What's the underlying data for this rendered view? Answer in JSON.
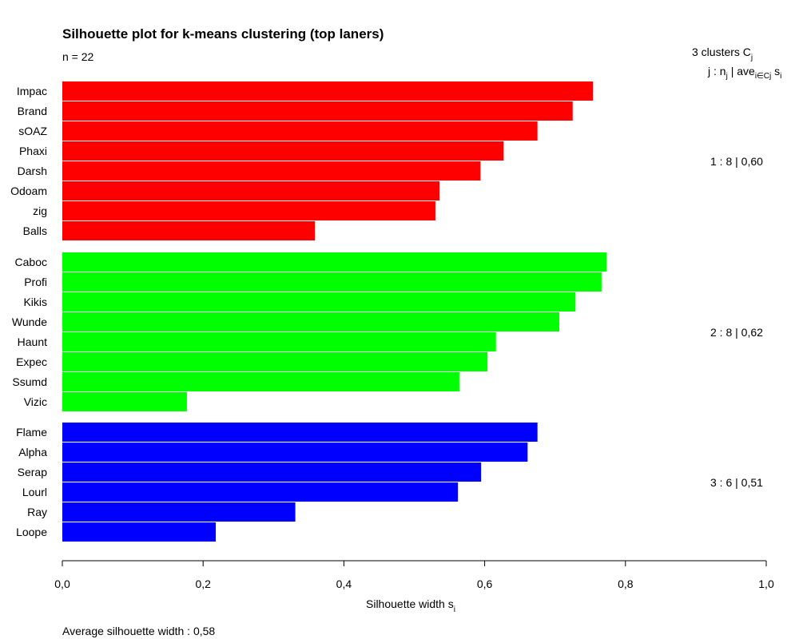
{
  "chart_data": {
    "type": "bar",
    "orientation": "horizontal",
    "title": "Silhouette plot for k-means clustering (top laners)",
    "subtitle": "n = 22",
    "xlabel": "Silhouette width",
    "xlabel_sub": "i",
    "xlim": [
      0,
      1
    ],
    "xticks": [
      "0,0",
      "0,2",
      "0,4",
      "0,6",
      "0,8",
      "1,0"
    ],
    "xtick_values": [
      0,
      0.2,
      0.4,
      0.6,
      0.8,
      1.0
    ],
    "legend": {
      "line1": "3  clusters  C",
      "line1_sub": "j",
      "line2_a": "j :  n",
      "line2_sub_j": "j",
      "line2_b": " | ave",
      "line2_sub_i": "i∈Cj",
      "line2_c": "  s",
      "line2_sub_s": "i"
    },
    "footer": "Average silhouette width :  0,58",
    "clusters": [
      {
        "label": "1 :   8  |  0,60",
        "color": "#ff0000",
        "names": [
          "Impac",
          "Brand",
          "sOAZ",
          "Phaxi",
          "Darsh",
          "Odoam",
          "zig",
          "Balls"
        ],
        "values": [
          0.754,
          0.725,
          0.675,
          0.627,
          0.594,
          0.536,
          0.53,
          0.359
        ]
      },
      {
        "label": "2 :   8  |  0,62",
        "color": "#00ff00",
        "names": [
          "Caboc",
          "Profi",
          "Kikis",
          "Wunde",
          "Haunt",
          "Expec",
          "Ssumd",
          "Vizic"
        ],
        "values": [
          0.773,
          0.766,
          0.729,
          0.706,
          0.616,
          0.604,
          0.564,
          0.177
        ]
      },
      {
        "label": "3 :   6  |  0,51",
        "color": "#0000ff",
        "names": [
          "Flame",
          "Alpha",
          "Serap",
          "Lourl",
          "Ray",
          "Loope"
        ],
        "values": [
          0.675,
          0.661,
          0.595,
          0.562,
          0.331,
          0.218
        ]
      }
    ]
  }
}
